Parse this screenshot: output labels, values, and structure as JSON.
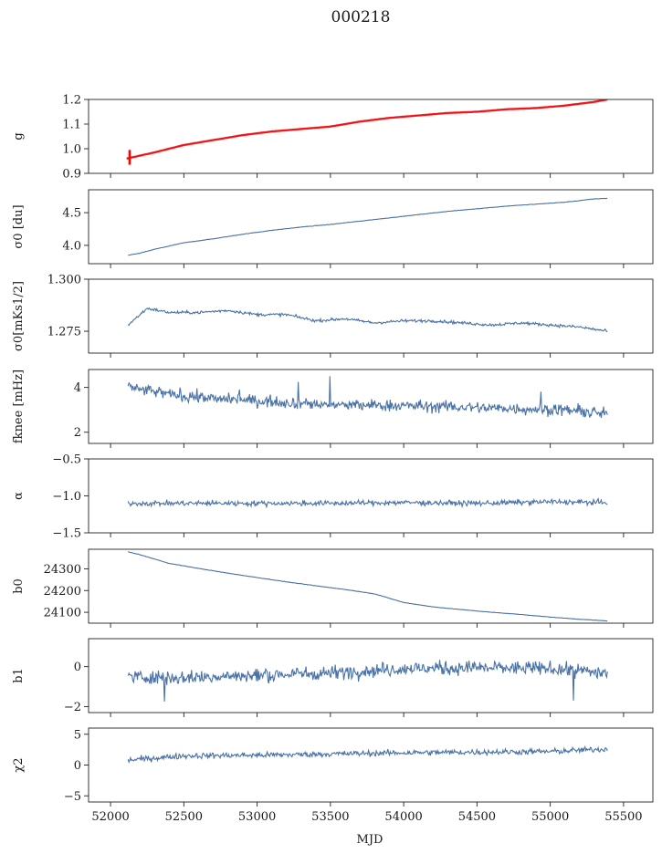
{
  "figure": {
    "title": "000218",
    "xlabel": "MJD",
    "line_color": "#4a72a6",
    "model_color": "#ff0000",
    "x_ticks": [
      52000,
      52500,
      53000,
      53500,
      54000,
      54500,
      55000,
      55500
    ],
    "x_tick_labels": [
      "52000",
      "52500",
      "53000",
      "53500",
      "54000",
      "54500",
      "55000",
      "55500"
    ]
  },
  "chart_data": [
    {
      "type": "line",
      "id": "g",
      "ylabel": "g",
      "ylim": [
        0.9,
        1.2
      ],
      "yticks": [
        0.9,
        1.0,
        1.1,
        1.2
      ],
      "ytick_labels": [
        "0.9",
        "1.0",
        "1.1",
        "1.2"
      ],
      "x_range": [
        52110,
        55390
      ],
      "series": [
        {
          "x": [
            52110,
            52300,
            52500,
            52700,
            52900,
            53100,
            53300,
            53500,
            53700,
            53900,
            54100,
            54300,
            54500,
            54700,
            54900,
            55100,
            55300,
            55390
          ],
          "values": [
            0.96,
            0.985,
            1.015,
            1.035,
            1.055,
            1.07,
            1.08,
            1.09,
            1.11,
            1.125,
            1.135,
            1.145,
            1.15,
            1.16,
            1.165,
            1.175,
            1.19,
            1.2
          ]
        }
      ]
    },
    {
      "type": "line",
      "id": "sigma0-du",
      "ylabel": "σ0 [du]",
      "ylim": [
        3.72,
        4.85
      ],
      "yticks": [
        4.0,
        4.5
      ],
      "ytick_labels": [
        "4.0",
        "4.5"
      ],
      "x_range": [
        52120,
        55390
      ],
      "series": [
        {
          "x": [
            52120,
            52200,
            52300,
            52500,
            52700,
            52900,
            53100,
            53300,
            53500,
            53700,
            53900,
            54100,
            54300,
            54500,
            54700,
            54900,
            55100,
            55300,
            55390
          ],
          "values": [
            3.85,
            3.88,
            3.94,
            4.04,
            4.1,
            4.17,
            4.23,
            4.28,
            4.32,
            4.37,
            4.42,
            4.47,
            4.52,
            4.56,
            4.6,
            4.63,
            4.66,
            4.71,
            4.72
          ]
        }
      ]
    },
    {
      "type": "line",
      "id": "sigma0-mks",
      "ylabel": "σ0[mKs1/2]",
      "ylim": [
        1.2645,
        1.3
      ],
      "yticks": [
        1.275,
        1.3
      ],
      "ytick_labels": [
        "1.275",
        "1.300"
      ],
      "x_range": [
        52120,
        55390
      ],
      "series": [
        {
          "x": [
            52120,
            52250,
            52400,
            52600,
            52800,
            53000,
            53200,
            53400,
            53600,
            53800,
            54000,
            54200,
            54400,
            54600,
            54800,
            55000,
            55200,
            55390
          ],
          "values": [
            1.278,
            1.286,
            1.284,
            1.284,
            1.285,
            1.283,
            1.283,
            1.28,
            1.281,
            1.279,
            1.28,
            1.28,
            1.279,
            1.278,
            1.279,
            1.278,
            1.277,
            1.275
          ]
        }
      ]
    },
    {
      "type": "line",
      "id": "fknee",
      "ylabel": "fknee [mHz]",
      "ylim": [
        1.5,
        4.8
      ],
      "yticks": [
        2,
        4
      ],
      "ytick_labels": [
        "2",
        "4"
      ],
      "x_range": [
        52120,
        55390
      ],
      "series": [
        {
          "x": [
            52120,
            52400,
            52700,
            53000,
            53300,
            53600,
            53900,
            54200,
            54500,
            54800,
            55100,
            55390
          ],
          "values": [
            4.0,
            3.7,
            3.5,
            3.4,
            3.3,
            3.2,
            3.2,
            3.15,
            3.1,
            3.05,
            3.0,
            2.8
          ]
        }
      ]
    },
    {
      "type": "line",
      "id": "alpha",
      "ylabel": "α",
      "ylim": [
        -1.5,
        -0.5
      ],
      "yticks": [
        -1.5,
        -1.0,
        -0.5
      ],
      "ytick_labels": [
        "−1.5",
        "−1.0",
        "−0.5"
      ],
      "x_range": [
        52120,
        55390
      ],
      "series": [
        {
          "x": [
            52120,
            52500,
            53000,
            53500,
            54000,
            54500,
            55000,
            55390
          ],
          "values": [
            -1.1,
            -1.1,
            -1.1,
            -1.1,
            -1.09,
            -1.1,
            -1.08,
            -1.09
          ]
        }
      ]
    },
    {
      "type": "line",
      "id": "b0",
      "ylabel": "b0",
      "ylim": [
        24050,
        24390
      ],
      "yticks": [
        24100,
        24200,
        24300
      ],
      "ytick_labels": [
        "24100",
        "24200",
        "24300"
      ],
      "x_range": [
        52120,
        55390
      ],
      "series": [
        {
          "x": [
            52120,
            52200,
            52300,
            52400,
            52600,
            52800,
            53000,
            53200,
            53400,
            53600,
            53800,
            54000,
            54200,
            54400,
            54600,
            54800,
            55000,
            55200,
            55390
          ],
          "values": [
            24378,
            24365,
            24345,
            24325,
            24302,
            24280,
            24260,
            24240,
            24222,
            24205,
            24185,
            24145,
            24125,
            24112,
            24100,
            24090,
            24078,
            24068,
            24060
          ]
        }
      ]
    },
    {
      "type": "line",
      "id": "b1",
      "ylabel": "b1",
      "ylim": [
        -2.3,
        1.4
      ],
      "yticks": [
        -2,
        0
      ],
      "ytick_labels": [
        "−2",
        "0"
      ],
      "x_range": [
        52120,
        55390
      ],
      "series": [
        {
          "x": [
            52120,
            52500,
            53000,
            53500,
            54000,
            54500,
            55000,
            55390
          ],
          "values": [
            -0.5,
            -0.55,
            -0.45,
            -0.3,
            -0.1,
            -0.05,
            -0.1,
            -0.3
          ]
        }
      ]
    },
    {
      "type": "line",
      "id": "chi2",
      "ylabel": "χ2",
      "ylim": [
        -6,
        6
      ],
      "yticks": [
        -5,
        0,
        5
      ],
      "ytick_labels": [
        "−5",
        "0",
        "5"
      ],
      "x_range": [
        52120,
        55390
      ],
      "series": [
        {
          "x": [
            52120,
            52500,
            53000,
            53500,
            54000,
            54500,
            55000,
            55390
          ],
          "values": [
            0.8,
            1.5,
            1.6,
            1.8,
            2.0,
            2.1,
            2.2,
            2.6
          ]
        }
      ]
    }
  ]
}
